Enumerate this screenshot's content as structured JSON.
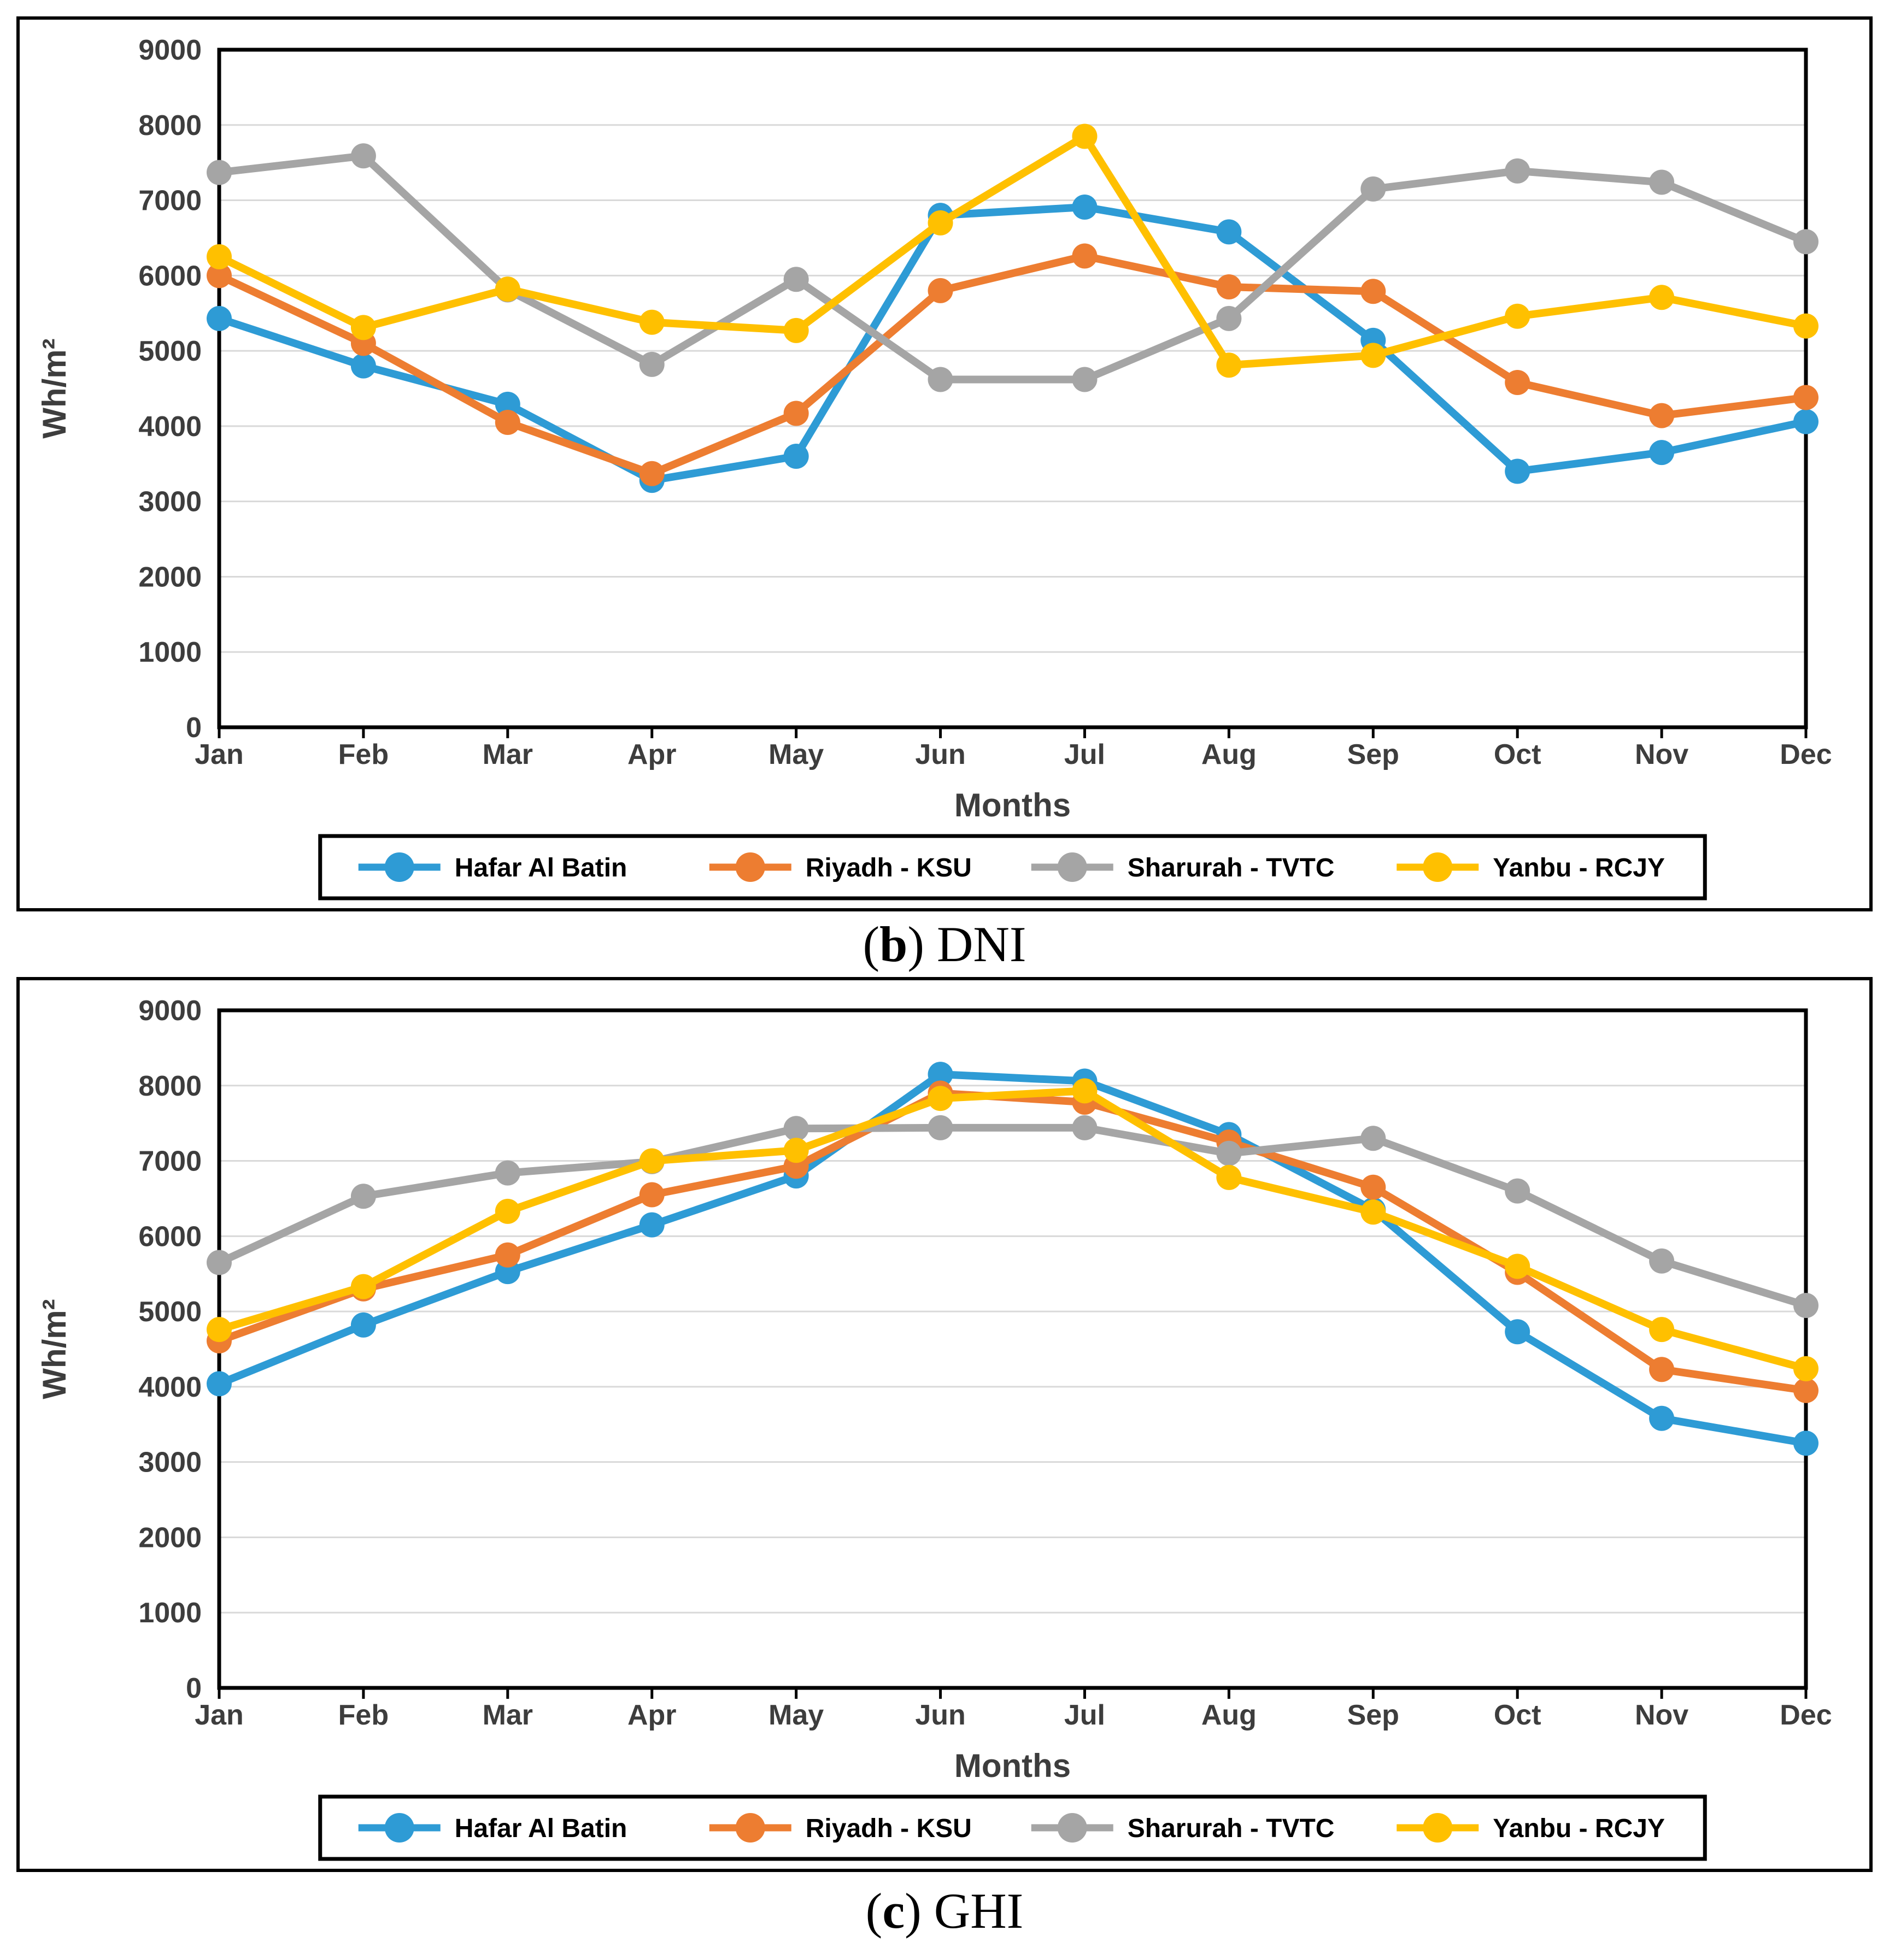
{
  "page": {
    "captions": [
      {
        "open_paren": "(",
        "letter": "b",
        "close_paren": ")",
        "label": "DNI"
      },
      {
        "open_paren": "(",
        "letter": "c",
        "close_paren": ")",
        "label": "GHI"
      }
    ]
  },
  "chart_data": [
    {
      "type": "line",
      "title": "(b) DNI",
      "xlabel": "Months",
      "ylabel": "Wh/m²",
      "ylim": [
        0,
        9000
      ],
      "ytick_step": 1000,
      "grid": true,
      "legend_position": "bottom",
      "gridline_color": "#D9D9D9",
      "categories": [
        "Jan",
        "Feb",
        "Mar",
        "Apr",
        "May",
        "Jun",
        "Jul",
        "Aug",
        "Sep",
        "Oct",
        "Nov",
        "Dec"
      ],
      "series": [
        {
          "name": "Hafar Al Batin",
          "color": "#2E9BD5",
          "values": [
            5430,
            4800,
            4290,
            3280,
            3600,
            6800,
            6910,
            6580,
            5140,
            3400,
            3650,
            4060
          ]
        },
        {
          "name": "Riyadh - KSU",
          "color": "#ED7D31",
          "values": [
            6000,
            5100,
            4050,
            3370,
            4170,
            5800,
            6260,
            5850,
            5790,
            4580,
            4140,
            4380
          ]
        },
        {
          "name": "Sharurah - TVTC",
          "color": "#A5A5A5",
          "values": [
            7370,
            7590,
            5810,
            4820,
            5950,
            4620,
            4620,
            5430,
            7150,
            7390,
            7240,
            6450
          ]
        },
        {
          "name": "Yanbu - RCJY",
          "color": "#FFC000",
          "values": [
            6250,
            5310,
            5820,
            5380,
            5270,
            6700,
            7850,
            4810,
            4940,
            5460,
            5710,
            5330
          ]
        }
      ]
    },
    {
      "type": "line",
      "title": "(c) GHI",
      "xlabel": "Months",
      "ylabel": "Wh/m²",
      "ylim": [
        0,
        9000
      ],
      "ytick_step": 1000,
      "grid": true,
      "legend_position": "bottom",
      "gridline_color": "#D9D9D9",
      "categories": [
        "Jan",
        "Feb",
        "Mar",
        "Apr",
        "May",
        "Jun",
        "Jul",
        "Aug",
        "Sep",
        "Oct",
        "Nov",
        "Dec"
      ],
      "series": [
        {
          "name": "Hafar Al Batin",
          "color": "#2E9BD5",
          "values": [
            4040,
            4820,
            5530,
            6150,
            6800,
            8150,
            8060,
            7350,
            6350,
            4730,
            3580,
            3250
          ]
        },
        {
          "name": "Riyadh - KSU",
          "color": "#ED7D31",
          "values": [
            4610,
            5300,
            5750,
            6550,
            6930,
            7900,
            7780,
            7250,
            6650,
            5520,
            4230,
            3950
          ]
        },
        {
          "name": "Sharurah - TVTC",
          "color": "#A5A5A5",
          "values": [
            5650,
            6530,
            6840,
            6990,
            7430,
            7440,
            7440,
            7100,
            7300,
            6600,
            5670,
            5080
          ]
        },
        {
          "name": "Yanbu - RCJY",
          "color": "#FFC000",
          "values": [
            4760,
            5330,
            6330,
            7000,
            7140,
            7830,
            7930,
            6780,
            6320,
            5600,
            4760,
            4240
          ]
        }
      ]
    }
  ]
}
